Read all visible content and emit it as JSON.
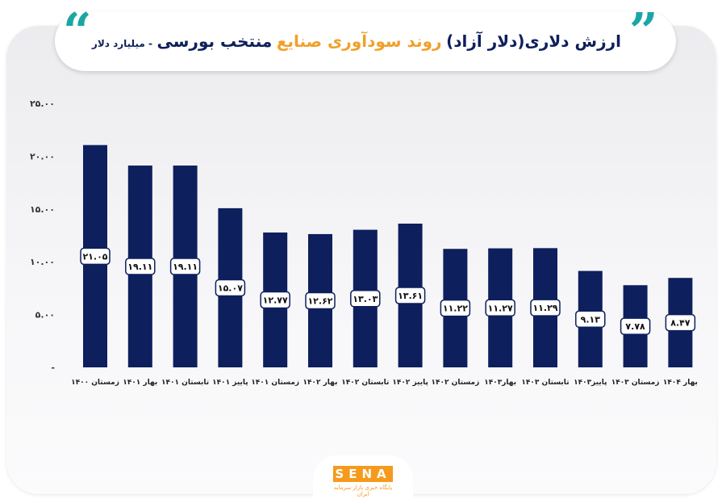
{
  "header": {
    "title_part1": "ارزش دلاری(دلار آزاد)",
    "title_part2": "روند سودآوری صنایع",
    "title_part3": "منتخب بورسی",
    "title_part4": "- میلیارد دلار"
  },
  "brand": {
    "logo": "SENA",
    "tagline": "پایگاه خبری بازار سرمایه ایران"
  },
  "colors": {
    "bar": "#0d1f5c",
    "teal_accent": "#1aa6a6",
    "orange_accent": "#f0a02a"
  },
  "chart_data": {
    "type": "bar",
    "categories": [
      "زمستان ۱۴۰۰",
      "بهار ۱۴۰۱",
      "تابستان ۱۴۰۱",
      "پاییز ۱۴۰۱",
      "زمستان ۱۴۰۱",
      "بهار ۱۴۰۲",
      "تابستان ۱۴۰۲",
      "پاییز ۱۴۰۲",
      "زمستان ۱۴۰۲",
      "بهار۱۴۰۳",
      "تابستان ۱۴۰۳",
      "پاییز۱۴۰۳",
      "زمستان ۱۴۰۳",
      "بهار ۱۴۰۴"
    ],
    "values": [
      21.05,
      19.11,
      19.11,
      15.07,
      12.77,
      12.62,
      13.03,
      13.61,
      11.22,
      11.27,
      11.29,
      9.13,
      7.78,
      8.47
    ],
    "value_labels": [
      "۲۱.۰۵",
      "۱۹.۱۱",
      "۱۹.۱۱",
      "۱۵.۰۷",
      "۱۲.۷۷",
      "۱۲.۶۲",
      "۱۳.۰۳",
      "۱۳.۶۱",
      "۱۱.۲۲",
      "۱۱.۲۷",
      "۱۱.۲۹",
      "۹.۱۳",
      "۷.۷۸",
      "۸.۴۷"
    ],
    "yticks": [
      "-",
      "۵.۰۰",
      "۱۰.۰۰",
      "۱۵.۰۰",
      "۲۰.۰۰",
      "۲۵.۰۰"
    ],
    "ylim": [
      0,
      25
    ],
    "grid": false,
    "legend": "none"
  }
}
